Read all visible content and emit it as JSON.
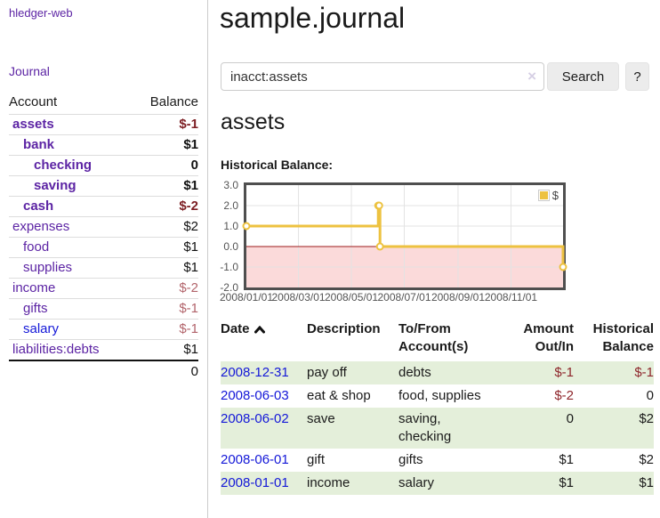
{
  "app": {
    "title": "hledger-web"
  },
  "sidebar": {
    "journal_link": "Journal",
    "headers": [
      "Account",
      "Balance"
    ],
    "accounts": [
      {
        "name": "assets",
        "depth": 1,
        "bold": true,
        "balance": "$-1",
        "balance_style": "neg-strong"
      },
      {
        "name": "bank",
        "depth": 2,
        "bold": true,
        "balance": "$1",
        "balance_style": ""
      },
      {
        "name": "checking",
        "depth": 3,
        "bold": true,
        "balance": "0",
        "balance_style": ""
      },
      {
        "name": "saving",
        "depth": 3,
        "bold": true,
        "balance": "$1",
        "balance_style": ""
      },
      {
        "name": "cash",
        "depth": 2,
        "bold": true,
        "balance": "$-2",
        "balance_style": "neg-strong"
      },
      {
        "name": "expenses",
        "depth": 1,
        "bold": false,
        "balance": "$2",
        "balance_style": ""
      },
      {
        "name": "food",
        "depth": 2,
        "bold": false,
        "balance": "$1",
        "balance_style": ""
      },
      {
        "name": "supplies",
        "depth": 2,
        "bold": false,
        "balance": "$1",
        "balance_style": ""
      },
      {
        "name": "income",
        "depth": 1,
        "bold": false,
        "balance": "$-2",
        "balance_style": "neg-muted"
      },
      {
        "name": "gifts",
        "depth": 2,
        "bold": false,
        "balance": "$-1",
        "balance_style": "neg-muted"
      },
      {
        "name": "salary",
        "depth": 2,
        "bold": false,
        "balance": "$-1",
        "balance_style": "neg-muted",
        "link": "blue"
      },
      {
        "name": "liabilities:debts",
        "depth": 1,
        "bold": false,
        "balance": "$1",
        "balance_style": ""
      }
    ],
    "total": "0"
  },
  "main": {
    "title": "sample.journal",
    "search": {
      "value": "inacct:assets",
      "clear_icon": "×",
      "button_label": "Search",
      "help_label": "?"
    },
    "account_heading": "assets"
  },
  "chart_data": {
    "type": "line",
    "title": "Historical Balance:",
    "step": true,
    "x_start": "2008-01-01",
    "x_end": "2008-12-31",
    "x_ticks": [
      "2008/01/01",
      "2008/03/01",
      "2008/05/01",
      "2008/07/01",
      "2008/09/01",
      "2008/11/01"
    ],
    "y_ticks": [
      "3.0",
      "2.0",
      "1.0",
      "0.0",
      "-1.0",
      "-2.0"
    ],
    "ylim": [
      -2,
      3
    ],
    "grid": true,
    "legend_position": "top-right",
    "negative_region_color": "#fbdada",
    "zero_line_color": "#9e1a1a",
    "series": [
      {
        "name": "$",
        "color": "#edc240",
        "points": [
          {
            "date": "2008-01-01",
            "value": 1
          },
          {
            "date": "2008-06-01",
            "value": 2
          },
          {
            "date": "2008-06-02",
            "value": 2
          },
          {
            "date": "2008-06-03",
            "value": 0
          },
          {
            "date": "2008-12-31",
            "value": -1
          }
        ]
      }
    ]
  },
  "register": {
    "headers": [
      "Date",
      "Description",
      "To/From Account(s)",
      "Amount Out/In",
      "Historical Balance"
    ],
    "sort": {
      "column": "Date",
      "direction": "ascending"
    },
    "rows": [
      {
        "date": "2008-12-31",
        "description": "pay off",
        "accounts": "debts",
        "amount": "$-1",
        "amount_negative": true,
        "balance": "$-1",
        "balance_negative": true
      },
      {
        "date": "2008-06-03",
        "description": "eat & shop",
        "accounts": "food, supplies",
        "amount": "$-2",
        "amount_negative": true,
        "balance": "0",
        "balance_negative": false
      },
      {
        "date": "2008-06-02",
        "description": "save",
        "accounts": "saving,\nchecking",
        "amount": "0",
        "amount_negative": false,
        "balance": "$2",
        "balance_negative": false
      },
      {
        "date": "2008-06-01",
        "description": "gift",
        "accounts": "gifts",
        "amount": "$1",
        "amount_negative": false,
        "balance": "$2",
        "balance_negative": false
      },
      {
        "date": "2008-01-01",
        "description": "income",
        "accounts": "salary",
        "amount": "$1",
        "amount_negative": false,
        "balance": "$1",
        "balance_negative": false
      }
    ]
  },
  "colors": {
    "link_purple": "#5c24a4",
    "link_blue": "#1418d8",
    "negative_strong": "#7d1f24",
    "negative_muted": "#b2646b",
    "register_negative": "#8e262b",
    "row_stripe_green": "#e4efda",
    "series_gold": "#edc240",
    "chart_negative_fill": "#fbdada",
    "chart_zero_line": "#9e1a1a"
  }
}
